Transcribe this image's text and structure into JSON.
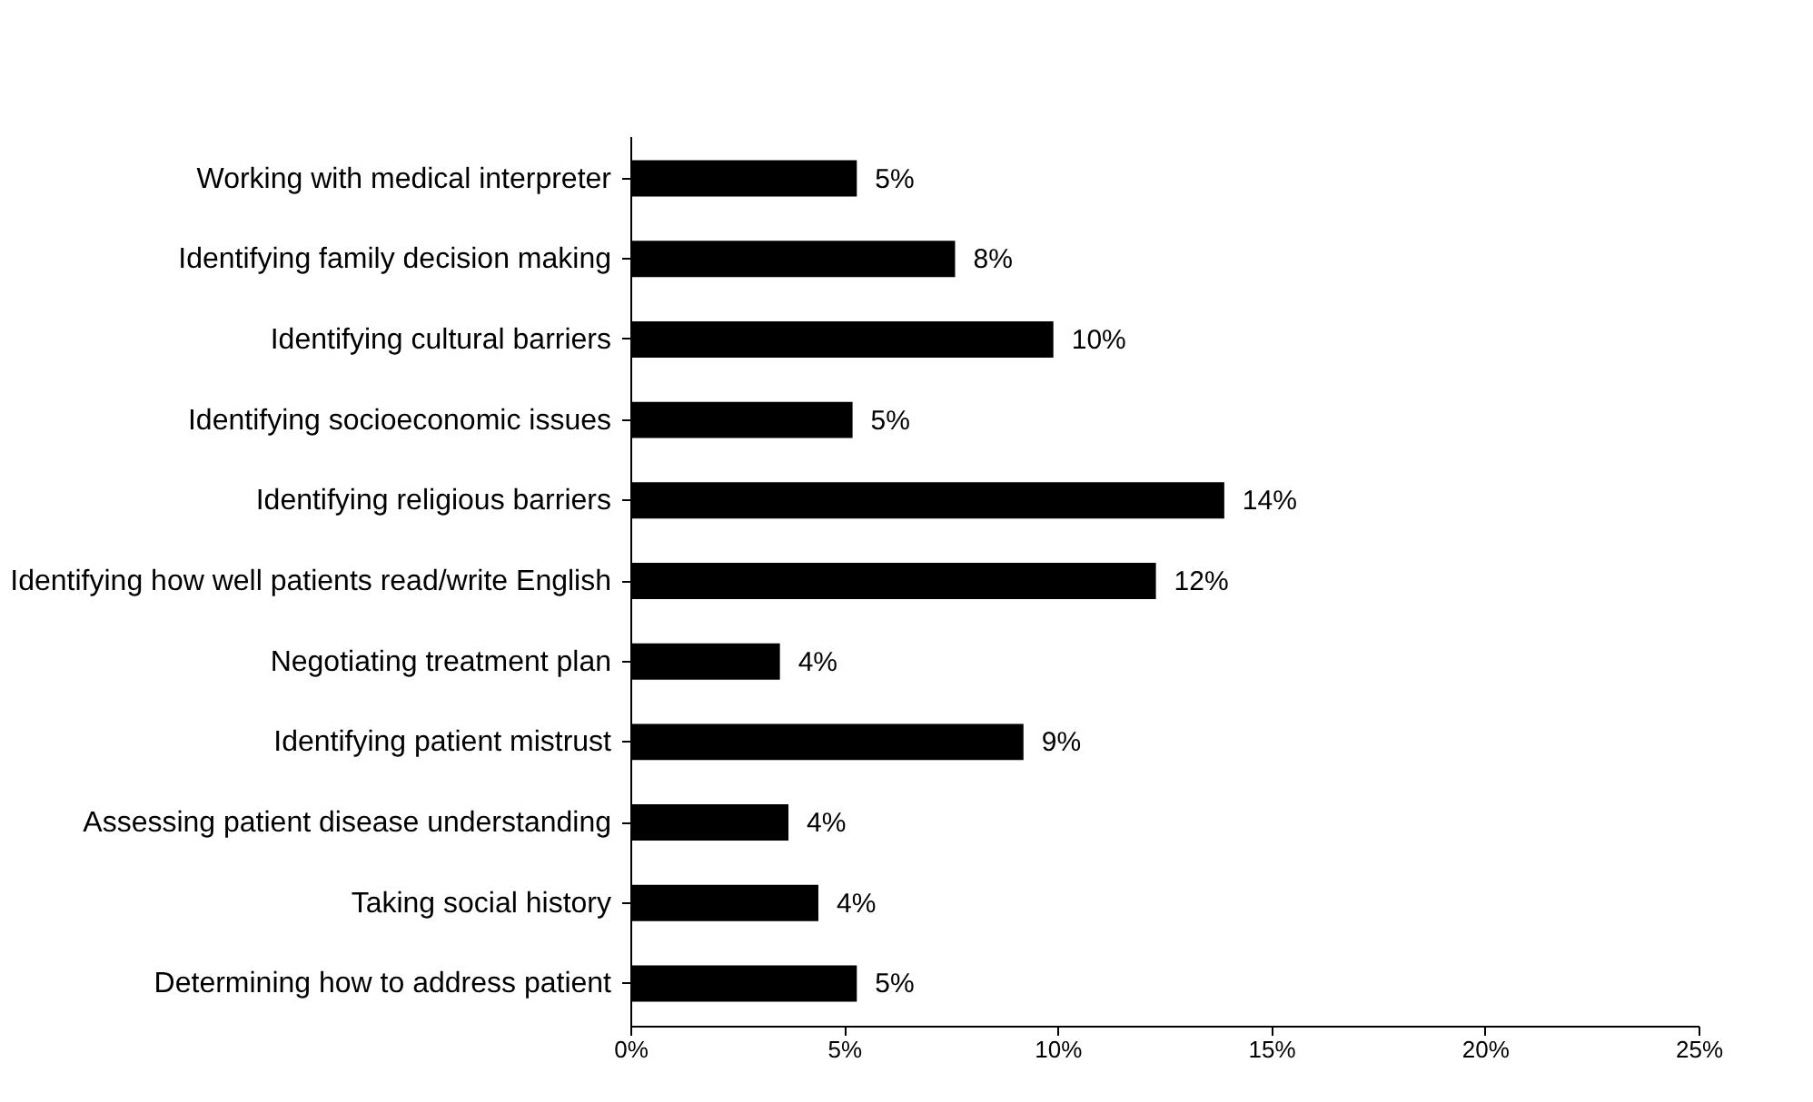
{
  "chart_data": {
    "type": "bar",
    "orientation": "horizontal",
    "categories": [
      "Working with medical interpreter",
      "Identifying family decision making",
      "Identifying cultural barriers",
      "Identifying socioeconomic issues",
      "Identifying religious barriers",
      "Identifying how well patients read/write English",
      "Negotiating treatment plan",
      "Identifying patient mistrust",
      "Assessing patient disease understanding",
      "Taking social history",
      "Determining how to address patient"
    ],
    "values": [
      5.3,
      7.6,
      9.9,
      5.2,
      13.9,
      12.3,
      3.5,
      9.2,
      3.7,
      4.4,
      5.3
    ],
    "value_labels": [
      "5%",
      "8%",
      "10%",
      "5%",
      "14%",
      "12%",
      "4%",
      "9%",
      "4%",
      "4%",
      "5%"
    ],
    "color": "#000000",
    "xlim": [
      0,
      25
    ],
    "xticks": [
      {
        "value": 0,
        "label": "0%"
      },
      {
        "value": 5,
        "label": "5%"
      },
      {
        "value": 10,
        "label": "10%"
      },
      {
        "value": 15,
        "label": "15%"
      },
      {
        "value": 20,
        "label": "20%"
      },
      {
        "value": 25,
        "label": "25%"
      }
    ],
    "grid": false
  }
}
